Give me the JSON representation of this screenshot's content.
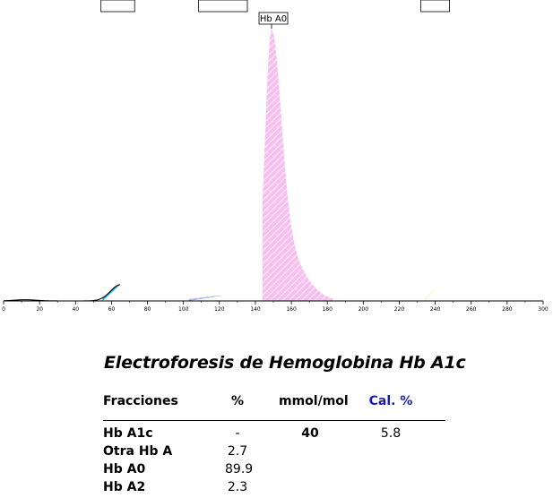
{
  "chart_data": {
    "type": "area",
    "title": "",
    "xlabel": "",
    "ylabel": "",
    "xlim": [
      0,
      300
    ],
    "x_ticks": [
      "0",
      "20",
      "40",
      "60",
      "80",
      "100",
      "120",
      "140",
      "160",
      "180",
      "200",
      "220",
      "240",
      "260",
      "280",
      "300"
    ],
    "grid": false,
    "peaks": [
      {
        "name": "Hb A1c",
        "center": 65,
        "height": 6,
        "color": "#2bb6e3"
      },
      {
        "name": "Otra Hb A",
        "center": 122,
        "height": 2,
        "color": "#9aa4e8"
      },
      {
        "name": "Hb A0",
        "center": 149,
        "height": 100,
        "color": "#f4b8ec"
      },
      {
        "name": "Hb A2",
        "center": 240,
        "height": 4,
        "color": "#f6efa0"
      }
    ]
  },
  "report": {
    "title": "Electroforesis de Hemoglobina Hb A1c",
    "headers": {
      "fraction": "Fracciones",
      "pct": "%",
      "mmol": "mmol/mol",
      "cal": "Cal. %"
    },
    "cal_color": "#1a1ab5",
    "rows": [
      {
        "name": "Hb A1c",
        "pct": "-",
        "mmol": "40",
        "cal": "5.8"
      },
      {
        "name": "Otra Hb A",
        "pct": "2.7",
        "mmol": "",
        "cal": ""
      },
      {
        "name": "Hb A0",
        "pct": "89.9",
        "mmol": "",
        "cal": ""
      },
      {
        "name": "Hb A2",
        "pct": "2.3",
        "mmol": "",
        "cal": ""
      }
    ]
  }
}
